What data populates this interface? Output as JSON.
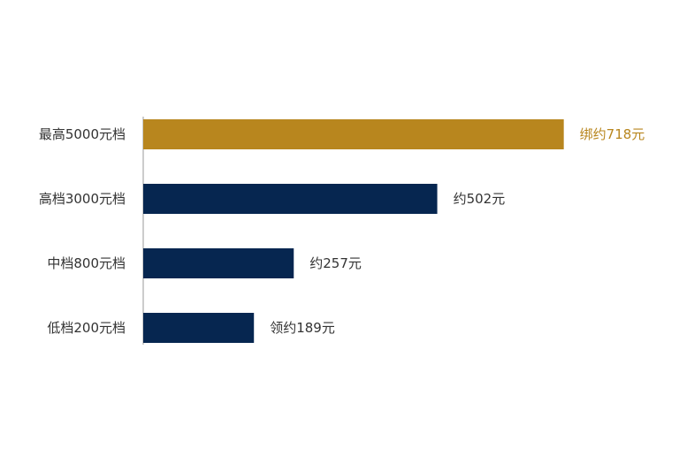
{
  "chart_data": {
    "type": "bar",
    "orientation": "horizontal",
    "title": "",
    "xlabel": "",
    "ylabel": "",
    "grid": false,
    "legend": "none",
    "xlim": [
      0,
      800
    ],
    "categories": [
      "最高5000元档",
      "高档3000元档",
      "中档800元档",
      "低档200元档"
    ],
    "values": [
      718,
      502,
      257,
      189
    ],
    "value_labels": [
      "绑约718元",
      "约502元",
      "约257元",
      "领约189元"
    ],
    "colors": [
      "#B8861E",
      "#062650",
      "#062650",
      "#062650"
    ],
    "label_colors": [
      "#B8861E",
      "#333333",
      "#333333",
      "#333333"
    ],
    "axis_color": "#9a9a9a"
  }
}
